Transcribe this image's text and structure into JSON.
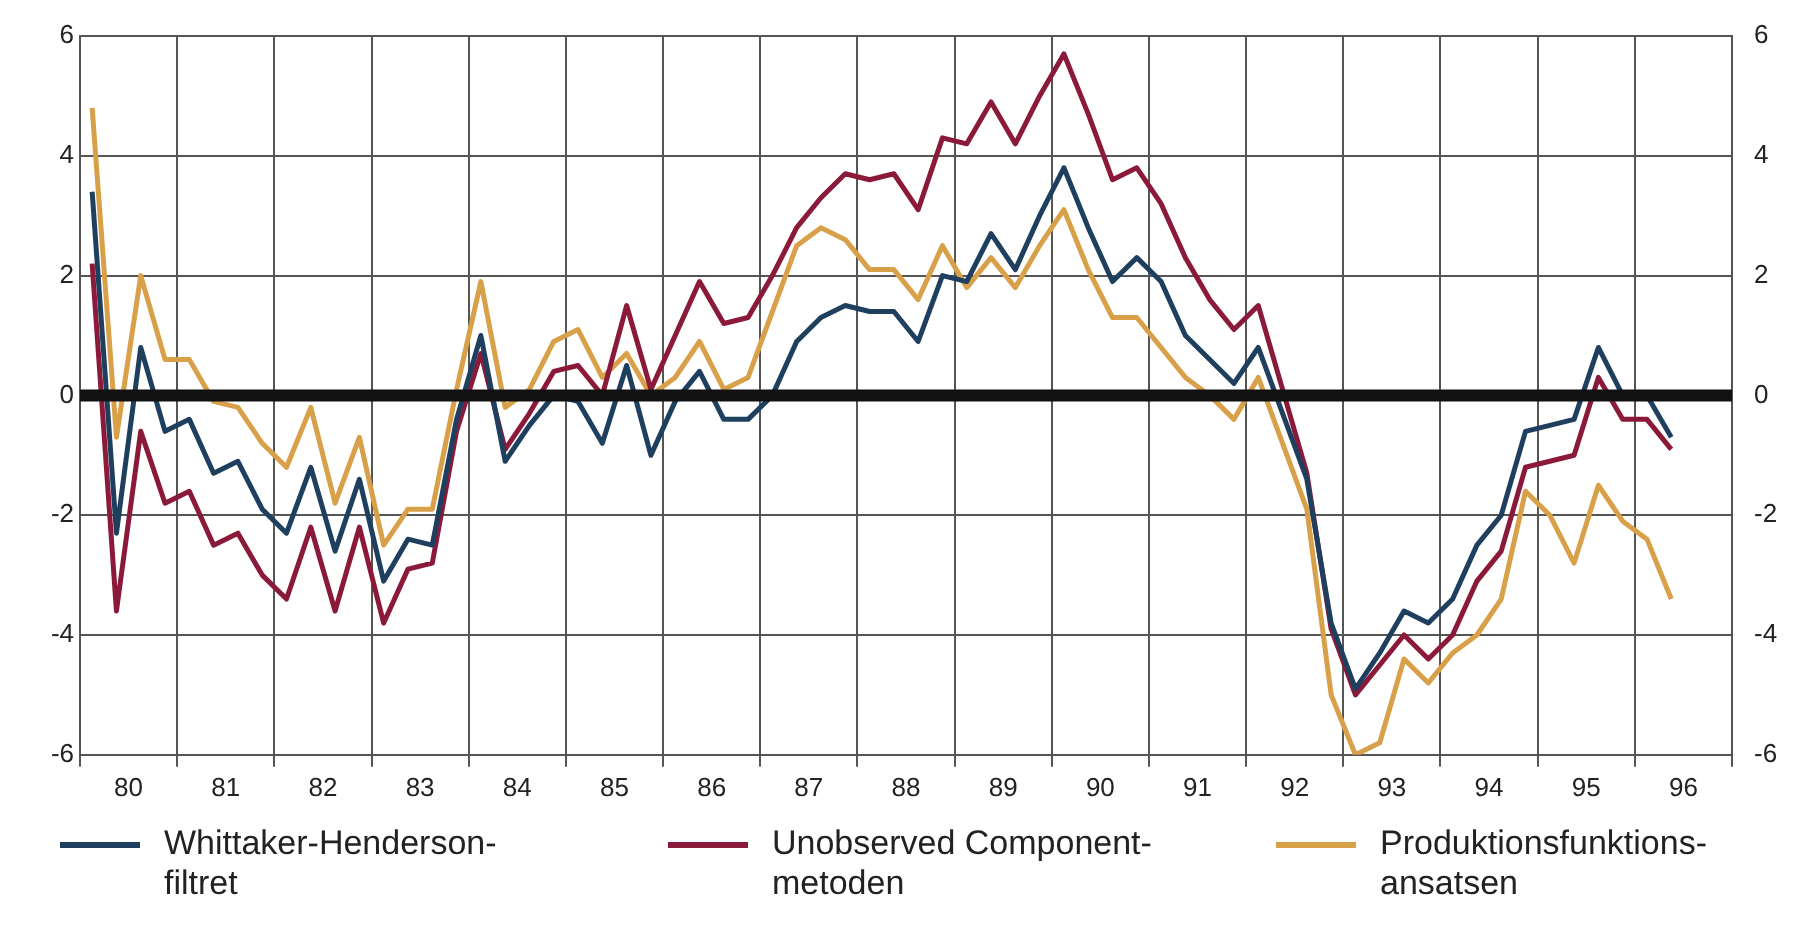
{
  "chart_data": {
    "type": "line",
    "x": [
      79.625,
      79.875,
      80.125,
      80.375,
      80.625,
      80.875,
      81.125,
      81.375,
      81.625,
      81.875,
      82.125,
      82.375,
      82.625,
      82.875,
      83.125,
      83.375,
      83.625,
      83.875,
      84.125,
      84.375,
      84.625,
      84.875,
      85.125,
      85.375,
      85.625,
      85.875,
      86.125,
      86.375,
      86.625,
      86.875,
      87.125,
      87.375,
      87.625,
      87.875,
      88.125,
      88.375,
      88.625,
      88.875,
      89.125,
      89.375,
      89.625,
      89.875,
      90.125,
      90.375,
      90.625,
      90.875,
      91.125,
      91.375,
      91.625,
      91.875,
      92.125,
      92.375,
      92.625,
      92.875,
      93.125,
      93.375,
      93.625,
      93.875,
      94.125,
      94.375,
      94.625,
      94.875,
      95.125,
      95.375,
      95.625,
      95.875
    ],
    "series": [
      {
        "name": "Whittaker-Henderson-filtret",
        "color": "#1f3f5f",
        "values": [
          3.4,
          -2.3,
          0.8,
          -0.6,
          -0.4,
          -1.3,
          -1.1,
          -1.9,
          -2.3,
          -1.2,
          -2.6,
          -1.4,
          -3.1,
          -2.4,
          -2.5,
          -0.4,
          1.0,
          -1.1,
          -0.5,
          0.0,
          -0.1,
          -0.8,
          0.5,
          -1.0,
          -0.1,
          0.4,
          -0.4,
          -0.4,
          0.0,
          0.9,
          1.3,
          1.5,
          1.4,
          1.4,
          0.9,
          2.0,
          1.9,
          2.7,
          2.1,
          3.0,
          3.8,
          2.8,
          1.9,
          2.3,
          1.9,
          1.0,
          0.6,
          0.2,
          0.8,
          -0.3,
          -1.4,
          -3.8,
          -4.9,
          -4.3,
          -3.6,
          -3.8,
          -3.4,
          -2.5,
          -2.0,
          -0.6,
          -0.5,
          -0.4,
          0.8,
          0.0,
          0.0,
          -0.7
        ]
      },
      {
        "name": "Unobserved Component-metoden",
        "color": "#8b1a3a",
        "values": [
          2.2,
          -3.6,
          -0.6,
          -1.8,
          -1.6,
          -2.5,
          -2.3,
          -3.0,
          -3.4,
          -2.2,
          -3.6,
          -2.2,
          -3.8,
          -2.9,
          -2.8,
          -0.6,
          0.7,
          -0.9,
          -0.3,
          0.4,
          0.5,
          0.0,
          1.5,
          0.1,
          1.0,
          1.9,
          1.2,
          1.3,
          2.0,
          2.8,
          3.3,
          3.7,
          3.6,
          3.7,
          3.1,
          4.3,
          4.2,
          4.9,
          4.2,
          5.0,
          5.7,
          4.7,
          3.6,
          3.8,
          3.2,
          2.3,
          1.6,
          1.1,
          1.5,
          0.1,
          -1.3,
          -3.9,
          -5.0,
          -4.5,
          -4.0,
          -4.4,
          -4.0,
          -3.1,
          -2.6,
          -1.2,
          -1.1,
          -1.0,
          0.3,
          -0.4,
          -0.4,
          -0.9
        ]
      },
      {
        "name": "Produktionsfunktions-ansatsen",
        "color": "#d9a04a",
        "values": [
          4.8,
          -0.7,
          2.0,
          0.6,
          0.6,
          -0.1,
          -0.2,
          -0.8,
          -1.2,
          -0.2,
          -1.8,
          -0.7,
          -2.5,
          -1.9,
          -1.9,
          0.1,
          1.9,
          -0.2,
          0.1,
          0.9,
          1.1,
          0.3,
          0.7,
          0.0,
          0.3,
          0.9,
          0.1,
          0.3,
          1.4,
          2.5,
          2.8,
          2.6,
          2.1,
          2.1,
          1.6,
          2.5,
          1.8,
          2.3,
          1.8,
          2.5,
          3.1,
          2.1,
          1.3,
          1.3,
          0.8,
          0.3,
          0.0,
          -0.4,
          0.3,
          -0.8,
          -1.9,
          -5.0,
          -6.0,
          -5.8,
          -4.4,
          -4.8,
          -4.3,
          -4.0,
          -3.4,
          -1.6,
          -2.0,
          -2.8,
          -1.5,
          -2.1,
          -2.4,
          -3.4
        ]
      }
    ],
    "xlim": [
      79.5,
      96.5
    ],
    "xticks": [
      {
        "value": 79.5,
        "label": null
      },
      80,
      {
        "value": 80.5,
        "label": null
      },
      81,
      {
        "value": 81.5,
        "label": null
      },
      82,
      {
        "value": 82.5,
        "label": null
      },
      83,
      {
        "value": 83.5,
        "label": null
      },
      84,
      {
        "value": 84.5,
        "label": null
      },
      85,
      {
        "value": 85.5,
        "label": null
      },
      86,
      {
        "value": 86.5,
        "label": null
      },
      87,
      {
        "value": 87.5,
        "label": null
      },
      88,
      {
        "value": 88.5,
        "label": null
      },
      89,
      {
        "value": 89.5,
        "label": null
      },
      90,
      {
        "value": 90.5,
        "label": null
      },
      91,
      {
        "value": 91.5,
        "label": null
      },
      92,
      {
        "value": 92.5,
        "label": null
      },
      93,
      {
        "value": 93.5,
        "label": null
      },
      94,
      {
        "value": 94.5,
        "label": null
      },
      95,
      {
        "value": 95.5,
        "label": null
      },
      96,
      {
        "value": 96.5,
        "label": null
      }
    ],
    "ylim": [
      -6,
      6
    ],
    "yticks": [
      -6,
      -4,
      -2,
      0,
      2,
      4,
      6
    ],
    "y2lim": [
      -6,
      6
    ],
    "y2ticks": [
      -6,
      -4,
      -2,
      0,
      2,
      4,
      6
    ],
    "ref_lines": [
      {
        "axis": "y",
        "value": 0,
        "color": "#111111"
      }
    ],
    "grid": true,
    "legend": "bottom",
    "marker": "none",
    "line_style": "solid"
  }
}
